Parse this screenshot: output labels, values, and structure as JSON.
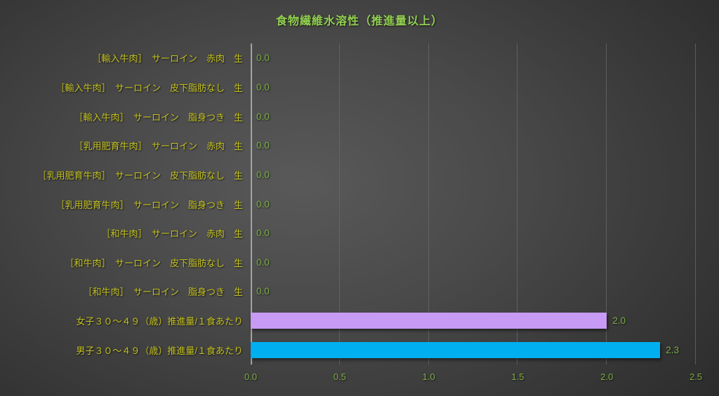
{
  "chart_data": {
    "type": "bar",
    "orientation": "horizontal",
    "title": "食物繊維水溶性（推進量以上）",
    "categories": [
      "［輸入牛肉］　サーロイン　赤肉　生",
      "［輸入牛肉］　サーロイン　皮下脂肪なし　生",
      "［輸入牛肉］　サーロイン　脂身つき　生",
      "［乳用肥育牛肉］　サーロイン　赤肉　生",
      "［乳用肥育牛肉］　サーロイン　皮下脂肪なし　生",
      "［乳用肥育牛肉］　サーロイン　脂身つき　生",
      "［和牛肉］　サーロイン　赤肉　生",
      "［和牛肉］　サーロイン　皮下脂肪なし　生",
      "［和牛肉］　サーロイン　脂身つき　生",
      "女子３０～４９（歳）推進量/１食あたり",
      "男子３０～４９（歳）推進量/１食あたり"
    ],
    "values": [
      0.0,
      0.0,
      0.0,
      0.0,
      0.0,
      0.0,
      0.0,
      0.0,
      0.0,
      2.0,
      2.3
    ],
    "value_labels": [
      "0.0",
      "0.0",
      "0.0",
      "0.0",
      "0.0",
      "0.0",
      "0.0",
      "0.0",
      "0.0",
      "2.0",
      "2.3"
    ],
    "bar_colors": [
      null,
      null,
      null,
      null,
      null,
      null,
      null,
      null,
      null,
      "#c79af3",
      "#00aff0"
    ],
    "xlabel": "",
    "ylabel": "",
    "xlim": [
      0.0,
      2.5
    ],
    "tick_labels": [
      "0.0",
      "0.5",
      "1.0",
      "1.5",
      "2.0",
      "2.5"
    ],
    "gridlines": "vertical",
    "legend": "none"
  },
  "colors": {
    "background_center": "#595959",
    "background_edge": "#222222",
    "title": "#92d050",
    "category_label": "#c3c11f",
    "value_label": "#7bac43",
    "tick_label": "#7bac43",
    "axis_line": "#a3a3a3",
    "gridline": "#6a6a6a",
    "bar_female": "#c79af3",
    "bar_male": "#00aff0"
  }
}
